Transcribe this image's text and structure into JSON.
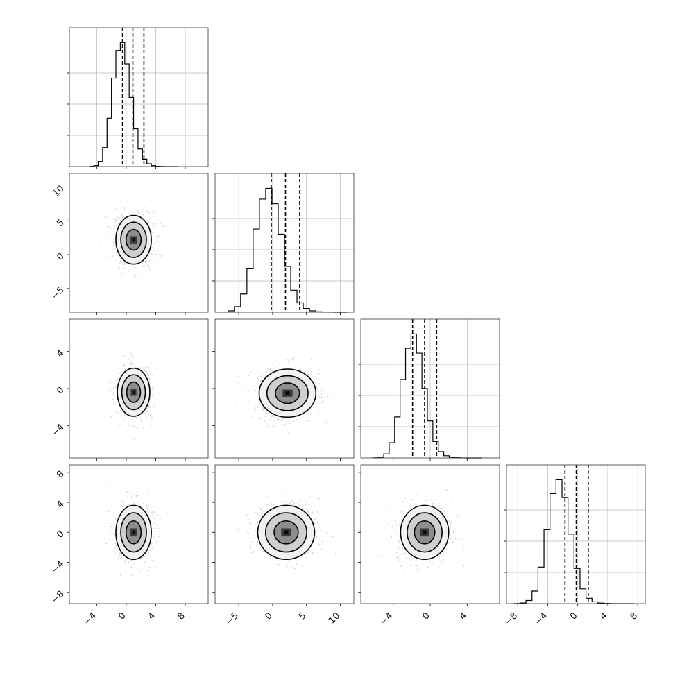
{
  "chart_data": {
    "type": "corner",
    "grid": true,
    "parameters": [
      {
        "ticks": [
          -4,
          0,
          4,
          8
        ],
        "tick_labels": [
          "−4",
          "0",
          "4",
          "8"
        ],
        "range": [
          -7.7,
          11.1
        ],
        "hist": {
          "edges_range": [
            -5.0,
            7.0
          ],
          "bins": 20,
          "counts": [
            4,
            20,
            110,
            410,
            1050,
            1920,
            2520,
            2690,
            2230,
            1500,
            820,
            380,
            160,
            60,
            20,
            6,
            2,
            1,
            0,
            0
          ]
        },
        "quantiles": [
          -0.5,
          0.9,
          2.4
        ]
      },
      {
        "ticks": [
          -5,
          0,
          5,
          10
        ],
        "tick_labels": [
          "−5",
          "0",
          "5",
          "10"
        ],
        "range": [
          -8.5,
          12.0
        ],
        "hist": {
          "edges_range": [
            -7.5,
            11.0
          ],
          "bins": 20,
          "counts": [
            6,
            30,
            120,
            390,
            940,
            1780,
            2420,
            2650,
            2320,
            1670,
            980,
            470,
            200,
            80,
            30,
            10,
            4,
            2,
            0,
            0
          ]
        },
        "quantiles": [
          -0.2,
          1.9,
          4.0
        ]
      },
      {
        "ticks": [
          -4,
          0,
          4
        ],
        "tick_labels": [
          "−4",
          "0",
          "4"
        ],
        "range": [
          -7.5,
          7.5
        ],
        "hist": {
          "edges_range": [
            -6.2,
            5.6
          ],
          "bins": 20,
          "counts": [
            3,
            18,
            90,
            340,
            920,
            1760,
            2460,
            2780,
            2350,
            1560,
            830,
            370,
            140,
            50,
            16,
            5,
            1,
            0,
            0,
            0
          ]
        },
        "quantiles": [
          -1.9,
          -0.6,
          0.7
        ]
      },
      {
        "ticks": [
          -8,
          -4,
          0,
          4,
          8
        ],
        "tick_labels": [
          "−8",
          "−4",
          "0",
          "4",
          "8"
        ],
        "range": [
          -9.5,
          9.0
        ],
        "hist": {
          "edges_range": [
            -8.5,
            7.5
          ],
          "bins": 20,
          "counts": [
            2,
            14,
            70,
            280,
            820,
            1660,
            2470,
            2780,
            2380,
            1560,
            790,
            330,
            120,
            40,
            12,
            4,
            1,
            0,
            0,
            0
          ]
        },
        "quantiles": [
          -1.7,
          -0.2,
          1.4
        ]
      }
    ],
    "row_tick_labels": {
      "1": [
        "−5",
        "0",
        "5",
        "10"
      ],
      "2": [
        "−4",
        "0",
        "4"
      ],
      "3": [
        "−8",
        "−4",
        "0",
        "4",
        "8"
      ]
    },
    "pairs": [
      {
        "row": 1,
        "col": 0,
        "center": [
          1.0,
          2.2
        ],
        "spread": [
          1.2,
          1.8
        ]
      },
      {
        "row": 2,
        "col": 0,
        "center": [
          1.0,
          -0.4
        ],
        "spread": [
          1.1,
          1.3
        ]
      },
      {
        "row": 2,
        "col": 1,
        "center": [
          2.2,
          -0.5
        ],
        "spread": [
          2.1,
          1.3
        ]
      },
      {
        "row": 3,
        "col": 0,
        "center": [
          1.0,
          0.0
        ],
        "spread": [
          1.2,
          1.8
        ]
      },
      {
        "row": 3,
        "col": 1,
        "center": [
          2.0,
          0.0
        ],
        "spread": [
          2.1,
          1.8
        ]
      },
      {
        "row": 3,
        "col": 2,
        "center": [
          -0.6,
          0.0
        ],
        "spread": [
          1.3,
          1.8
        ]
      }
    ]
  }
}
